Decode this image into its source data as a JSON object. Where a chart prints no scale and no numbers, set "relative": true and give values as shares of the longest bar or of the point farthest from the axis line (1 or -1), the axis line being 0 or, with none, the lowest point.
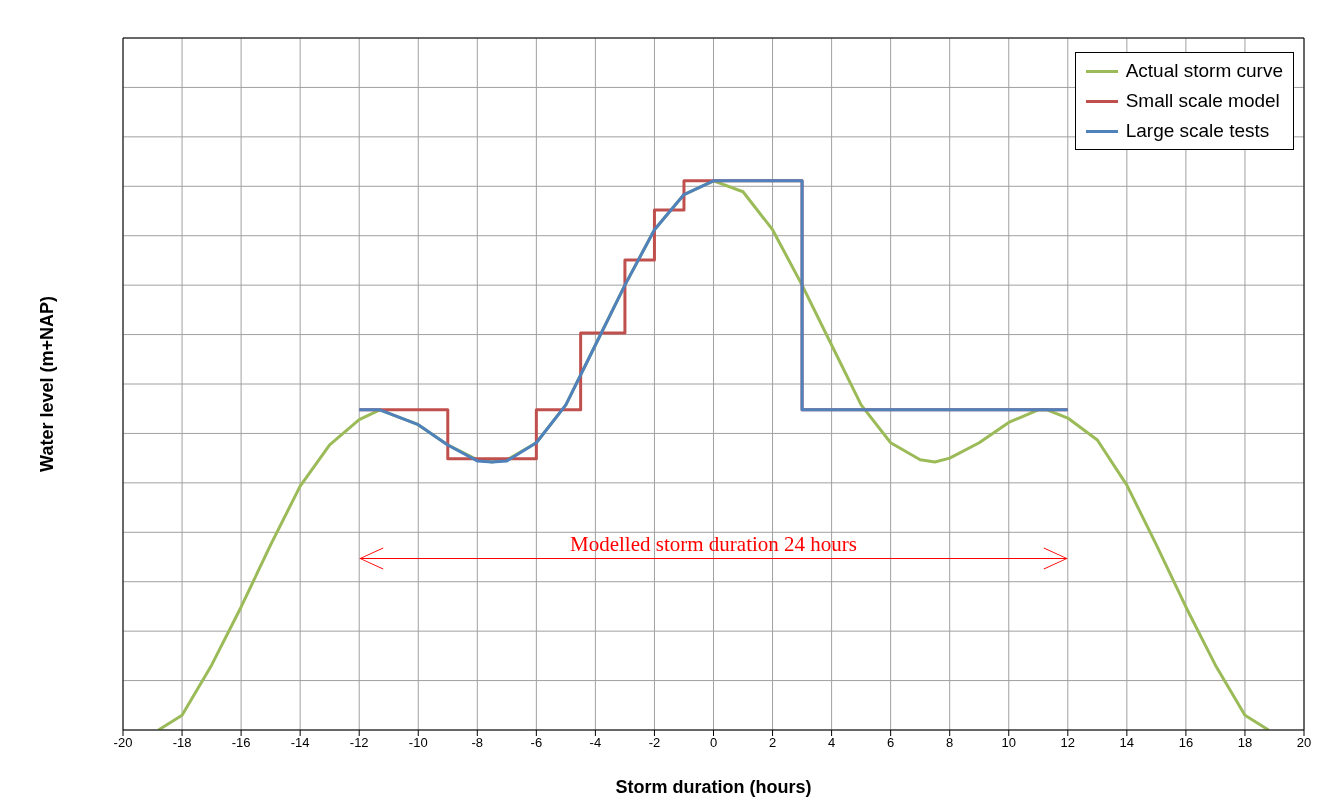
{
  "chart_data": {
    "type": "line",
    "relative": true,
    "xlabel": "Storm duration (hours)",
    "ylabel": "Water level (m+NAP)",
    "xlim": [
      -20,
      20
    ],
    "xticks": [
      -20,
      -18,
      -16,
      -14,
      -12,
      -10,
      -8,
      -6,
      -4,
      -2,
      0,
      2,
      4,
      6,
      8,
      10,
      12,
      14,
      16,
      18,
      20
    ],
    "grid": true,
    "legend": "top right",
    "annotations": [
      "Modelled storm duration 24 hours"
    ],
    "series": [
      {
        "name": "Actual storm curve",
        "type": "line",
        "color": "#9bbb59",
        "x": [
          -18.8,
          -18,
          -17,
          -16,
          -15,
          -14,
          -13,
          -12,
          -11.3,
          -10,
          -9,
          -8,
          -7.5,
          -7,
          -6,
          -5,
          -4,
          -3,
          -2,
          -1,
          0,
          1,
          2,
          3,
          4,
          5,
          6,
          7,
          7.5,
          8,
          9,
          10,
          11,
          11.3,
          12,
          13,
          14,
          15,
          16,
          17,
          18,
          18.8
        ],
        "values": [
          0,
          0.027,
          0.118,
          0.224,
          0.337,
          0.444,
          0.519,
          0.565,
          0.583,
          0.556,
          0.519,
          0.492,
          0.488,
          0.492,
          0.523,
          0.592,
          0.701,
          0.81,
          0.911,
          0.975,
          1,
          0.98,
          0.911,
          0.81,
          0.701,
          0.592,
          0.523,
          0.492,
          0.488,
          0.495,
          0.523,
          0.56,
          0.583,
          0.583,
          0.568,
          0.528,
          0.446,
          0.337,
          0.224,
          0.118,
          0.027,
          0
        ]
      },
      {
        "name": "Small scale model",
        "type": "step",
        "color": "#c0504d",
        "x": [
          -12,
          -9,
          -6,
          -4.5,
          -3,
          -2,
          -1,
          3,
          12
        ],
        "values": [
          0.583,
          0.494,
          0.583,
          0.723,
          0.856,
          0.947,
          1,
          0.583,
          0.583
        ]
      },
      {
        "name": "Large scale tests",
        "type": "line",
        "color": "#4f81bd",
        "x": [
          -12,
          -11.3,
          -10,
          -9,
          -8,
          -7.5,
          -7,
          -6,
          -5,
          -4,
          -3,
          -2,
          -1,
          0,
          3,
          3,
          12
        ],
        "values": [
          0.583,
          0.583,
          0.556,
          0.519,
          0.49,
          0.488,
          0.49,
          0.523,
          0.592,
          0.701,
          0.81,
          0.911,
          0.975,
          1,
          1,
          0.583,
          0.583
        ]
      }
    ]
  }
}
